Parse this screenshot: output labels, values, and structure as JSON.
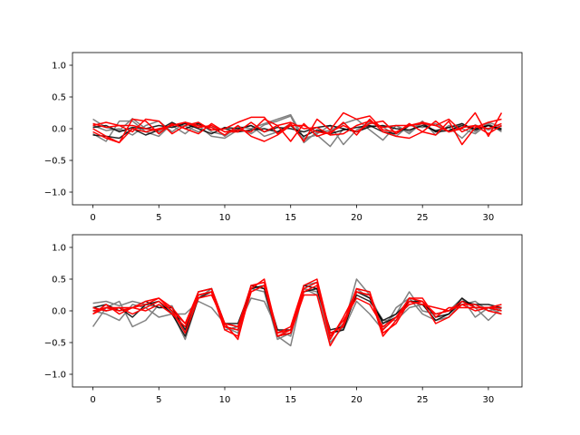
{
  "colors": {
    "background": "#ffffff",
    "red": "#ff0000",
    "grey": "#808080",
    "black": "#000000"
  },
  "chart_data": [
    {
      "type": "line",
      "title": "",
      "xlabel": "",
      "ylabel": "",
      "xlim": [
        -1.55,
        32.55
      ],
      "ylim": [
        -1.2,
        1.2
      ],
      "xticks": [
        0,
        5,
        10,
        15,
        20,
        25,
        30
      ],
      "yticks": [
        -1.0,
        -0.5,
        0.0,
        0.5,
        1.0
      ],
      "xtick_labels": [
        "0",
        "5",
        "10",
        "15",
        "20",
        "25",
        "30"
      ],
      "ytick_labels": [
        "−1.0",
        "−0.5",
        "0.0",
        "0.5",
        "1.0"
      ],
      "grid": false,
      "x": [
        0,
        1,
        2,
        3,
        4,
        5,
        6,
        7,
        8,
        9,
        10,
        11,
        12,
        13,
        14,
        15,
        16,
        17,
        18,
        19,
        20,
        21,
        22,
        23,
        24,
        25,
        26,
        27,
        28,
        29,
        30,
        31
      ],
      "series": [
        {
          "color": "#808080",
          "opacity": 1.0,
          "values": [
            0.15,
            0.02,
            -0.03,
            0.16,
            0.0,
            -0.05,
            0.05,
            -0.08,
            0.1,
            -0.05,
            -0.1,
            0.02,
            -0.08,
            0.06,
            0.12,
            0.2,
            -0.22,
            -0.05,
            -0.03,
            0.08,
            0.15,
            -0.02,
            -0.18,
            0.05,
            -0.08,
            0.1,
            -0.05,
            0.02,
            -0.15,
            0.06,
            -0.02,
            0.05
          ]
        },
        {
          "color": "#808080",
          "opacity": 1.0,
          "values": [
            -0.08,
            -0.2,
            0.12,
            0.12,
            -0.05,
            -0.12,
            0.08,
            0.04,
            -0.05,
            0.05,
            -0.12,
            0.03,
            0.0,
            0.08,
            0.15,
            0.22,
            -0.15,
            -0.1,
            -0.28,
            0.0,
            -0.05,
            0.05,
            0.03,
            -0.12,
            0.05,
            0.02,
            0.08,
            -0.05,
            0.08,
            -0.05,
            0.1,
            0.03
          ]
        },
        {
          "color": "#808080",
          "opacity": 1.0,
          "values": [
            0.05,
            -0.03,
            0.0,
            -0.1,
            0.05,
            0.12,
            -0.05,
            0.1,
            0.05,
            -0.12,
            -0.15,
            -0.02,
            0.05,
            -0.12,
            -0.05,
            0.08,
            -0.18,
            -0.08,
            0.05,
            -0.25,
            -0.02,
            0.1,
            0.03,
            0.05,
            -0.05,
            0.12,
            -0.1,
            0.05,
            0.0,
            -0.08,
            0.08,
            -0.05
          ]
        },
        {
          "color": "#000000",
          "opacity": 0.85,
          "values": [
            -0.1,
            -0.12,
            -0.15,
            0.0,
            -0.1,
            -0.02,
            0.1,
            0.0,
            0.08,
            -0.02,
            0.0,
            -0.05,
            -0.02,
            0.0,
            -0.05,
            0.05,
            -0.12,
            -0.02,
            -0.08,
            -0.02,
            0.02,
            0.05,
            -0.05,
            -0.08,
            0.05,
            0.08,
            -0.05,
            -0.03,
            0.05,
            0.0,
            0.05,
            -0.02
          ]
        },
        {
          "color": "#000000",
          "opacity": 0.85,
          "values": [
            0.02,
            0.05,
            -0.05,
            0.02,
            0.0,
            0.05,
            0.02,
            0.08,
            0.0,
            -0.08,
            0.02,
            0.0,
            0.05,
            -0.05,
            0.02,
            0.0,
            -0.05,
            0.02,
            0.05,
            0.0,
            -0.05,
            0.03,
            0.05,
            0.0,
            -0.02,
            0.05,
            -0.03,
            0.02,
            0.08,
            -0.02,
            0.05,
            0.0
          ]
        },
        {
          "color": "#ff0000",
          "opacity": 1.0,
          "values": [
            0.05,
            0.1,
            0.05,
            -0.05,
            0.15,
            0.12,
            -0.08,
            0.05,
            0.1,
            -0.02,
            0.0,
            0.1,
            0.18,
            0.18,
            -0.08,
            0.08,
            -0.2,
            0.15,
            -0.02,
            0.25,
            0.15,
            0.2,
            -0.02,
            -0.05,
            0.05,
            0.1,
            0.05,
            0.15,
            -0.05,
            0.05,
            -0.08,
            0.05
          ]
        },
        {
          "color": "#ff0000",
          "opacity": 1.0,
          "values": [
            -0.05,
            -0.15,
            -0.22,
            0.0,
            -0.05,
            0.0,
            0.05,
            0.1,
            0.05,
            0.02,
            -0.1,
            0.05,
            -0.12,
            -0.2,
            -0.1,
            0.05,
            0.05,
            -0.05,
            -0.08,
            0.1,
            -0.1,
            0.15,
            -0.05,
            -0.12,
            -0.15,
            -0.05,
            -0.1,
            0.12,
            -0.25,
            0.02,
            0.1,
            0.15
          ]
        },
        {
          "color": "#ff0000",
          "opacity": 1.0,
          "values": [
            0.0,
            -0.12,
            -0.22,
            0.15,
            0.12,
            -0.08,
            0.08,
            0.0,
            -0.08,
            0.08,
            -0.05,
            -0.02,
            -0.05,
            0.15,
            0.05,
            -0.2,
            0.08,
            -0.12,
            -0.05,
            0.05,
            -0.05,
            0.08,
            0.12,
            -0.08,
            0.08,
            -0.05,
            0.12,
            -0.05,
            0.0,
            0.25,
            -0.12,
            0.25
          ]
        },
        {
          "color": "#ff0000",
          "opacity": 1.0,
          "values": [
            0.08,
            0.02,
            0.05,
            0.05,
            0.0,
            -0.02,
            0.05,
            0.1,
            0.02,
            0.05,
            -0.05,
            -0.05,
            0.1,
            -0.05,
            0.05,
            0.1,
            0.0,
            0.02,
            -0.1,
            -0.08,
            0.05,
            0.12,
            0.02,
            0.05,
            0.05,
            0.08,
            0.05,
            -0.05,
            0.02,
            0.05,
            0.0,
            0.08
          ]
        }
      ]
    },
    {
      "type": "line",
      "title": "",
      "xlabel": "",
      "ylabel": "",
      "xlim": [
        -1.55,
        32.55
      ],
      "ylim": [
        -1.2,
        1.2
      ],
      "xticks": [
        0,
        5,
        10,
        15,
        20,
        25,
        30
      ],
      "yticks": [
        -1.0,
        -0.5,
        0.0,
        0.5,
        1.0
      ],
      "xtick_labels": [
        "0",
        "5",
        "10",
        "15",
        "20",
        "25",
        "30"
      ],
      "ytick_labels": [
        "−1.0",
        "−0.5",
        "0.0",
        "0.5",
        "1.0"
      ],
      "grid": false,
      "x": [
        0,
        1,
        2,
        3,
        4,
        5,
        6,
        7,
        8,
        9,
        10,
        11,
        12,
        13,
        14,
        15,
        16,
        17,
        18,
        19,
        20,
        21,
        22,
        23,
        24,
        25,
        26,
        27,
        28,
        29,
        30,
        31
      ],
      "series": [
        {
          "color": "#808080",
          "opacity": 1.0,
          "values": [
            0.12,
            0.15,
            0.08,
            0.15,
            0.1,
            0.05,
            0.08,
            -0.35,
            0.25,
            0.3,
            -0.25,
            -0.35,
            0.4,
            0.35,
            -0.4,
            -0.55,
            0.35,
            0.3,
            -0.5,
            -0.25,
            0.5,
            0.25,
            -0.2,
            -0.05,
            0.3,
            0.0,
            -0.05,
            0.0,
            0.2,
            -0.1,
            0.05,
            -0.05
          ]
        },
        {
          "color": "#808080",
          "opacity": 1.0,
          "values": [
            -0.25,
            0.05,
            0.15,
            -0.25,
            -0.15,
            0.1,
            -0.02,
            -0.45,
            0.2,
            0.35,
            -0.3,
            -0.25,
            0.35,
            0.3,
            -0.45,
            -0.35,
            0.4,
            0.45,
            -0.35,
            -0.3,
            0.15,
            -0.05,
            -0.3,
            0.05,
            0.2,
            -0.05,
            -0.15,
            -0.1,
            0.15,
            0.05,
            -0.15,
            0.05
          ]
        },
        {
          "color": "#808080",
          "opacity": 1.0,
          "values": [
            0.0,
            -0.05,
            -0.15,
            0.1,
            0.05,
            -0.1,
            -0.05,
            -0.05,
            0.15,
            0.05,
            -0.2,
            -0.25,
            0.2,
            0.15,
            -0.3,
            -0.4,
            0.35,
            0.25,
            -0.4,
            -0.2,
            0.35,
            0.2,
            -0.15,
            -0.15,
            0.05,
            0.1,
            -0.05,
            0.0,
            0.1,
            0.15,
            0.0,
            0.05
          ]
        },
        {
          "color": "#000000",
          "opacity": 0.85,
          "values": [
            0.05,
            0.0,
            0.05,
            -0.1,
            0.1,
            0.15,
            -0.05,
            -0.4,
            0.2,
            0.3,
            -0.25,
            -0.3,
            0.4,
            0.35,
            -0.4,
            -0.35,
            0.4,
            0.35,
            -0.35,
            -0.3,
            0.3,
            0.2,
            -0.2,
            -0.1,
            0.15,
            0.1,
            -0.15,
            -0.05,
            0.2,
            0.05,
            0.05,
            0.0
          ]
        },
        {
          "color": "#000000",
          "opacity": 0.85,
          "values": [
            0.05,
            0.1,
            0.0,
            0.05,
            0.15,
            0.05,
            0.05,
            -0.3,
            0.3,
            0.35,
            -0.2,
            -0.2,
            0.35,
            0.4,
            -0.3,
            -0.3,
            0.3,
            0.35,
            -0.3,
            -0.25,
            0.25,
            0.15,
            -0.15,
            -0.05,
            0.15,
            0.15,
            -0.1,
            -0.05,
            0.15,
            0.1,
            0.1,
            0.05
          ]
        },
        {
          "color": "#ff0000",
          "opacity": 1.0,
          "values": [
            0.0,
            0.05,
            0.05,
            0.05,
            0.15,
            0.2,
            0.0,
            -0.2,
            0.3,
            0.35,
            -0.2,
            -0.25,
            0.4,
            0.45,
            -0.35,
            -0.3,
            0.35,
            0.45,
            -0.45,
            -0.1,
            0.3,
            0.25,
            -0.3,
            -0.1,
            0.2,
            0.2,
            -0.1,
            0.05,
            0.05,
            0.05,
            0.05,
            0.05
          ]
        },
        {
          "color": "#ff0000",
          "opacity": 1.0,
          "values": [
            -0.05,
            0.05,
            0.0,
            0.05,
            0.1,
            0.2,
            0.05,
            -0.2,
            0.25,
            0.3,
            -0.3,
            -0.4,
            0.3,
            0.4,
            -0.4,
            -0.35,
            0.25,
            0.25,
            -0.55,
            -0.2,
            0.35,
            0.3,
            -0.35,
            -0.2,
            0.15,
            0.1,
            0.05,
            0.0,
            0.1,
            0.0,
            0.05,
            0.0
          ]
        },
        {
          "color": "#ff0000",
          "opacity": 1.0,
          "values": [
            0.05,
            0.0,
            0.05,
            -0.05,
            0.05,
            0.15,
            0.0,
            -0.35,
            0.2,
            0.25,
            -0.2,
            -0.45,
            0.35,
            0.5,
            -0.35,
            -0.25,
            0.4,
            0.5,
            -0.35,
            -0.25,
            0.3,
            0.25,
            -0.4,
            -0.15,
            0.2,
            0.15,
            -0.05,
            0.0,
            0.15,
            0.05,
            0.05,
            0.1
          ]
        },
        {
          "color": "#ff0000",
          "opacity": 1.0,
          "values": [
            -0.05,
            0.1,
            -0.05,
            0.05,
            0.0,
            0.1,
            -0.05,
            -0.25,
            0.25,
            0.3,
            -0.25,
            -0.3,
            0.3,
            0.4,
            -0.4,
            -0.3,
            0.3,
            0.4,
            -0.4,
            -0.15,
            0.2,
            0.1,
            -0.25,
            -0.1,
            0.1,
            0.15,
            -0.2,
            -0.1,
            0.1,
            0.1,
            0.0,
            -0.05
          ]
        }
      ]
    }
  ]
}
